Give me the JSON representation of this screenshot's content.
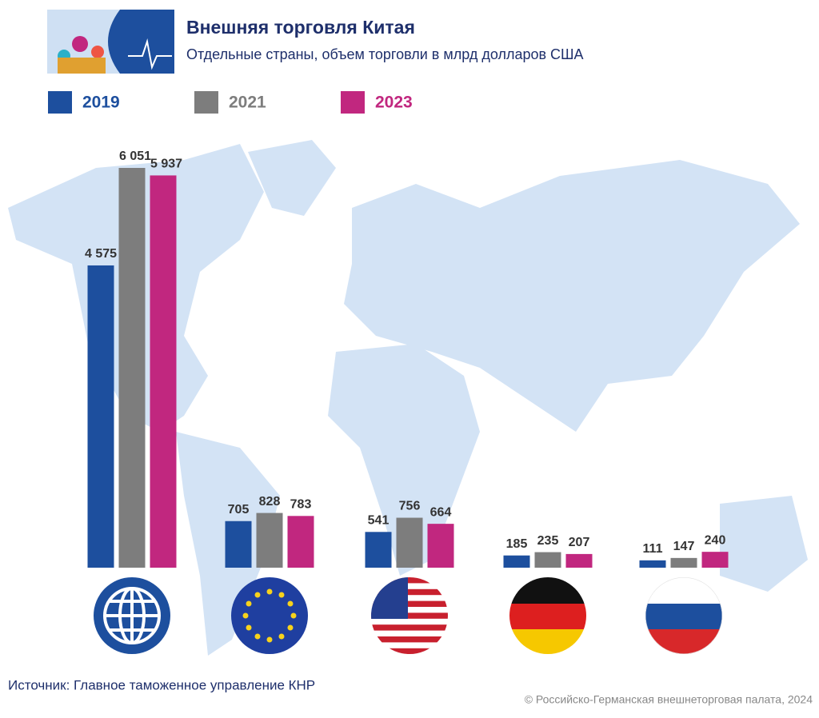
{
  "chart_data": {
    "type": "bar",
    "title": "Внешняя торговля Китая",
    "subtitle": "Отдельные страны, объем торговли в млрд долларов США",
    "categories": [
      null,
      null,
      null,
      null,
      null
    ],
    "series": [
      {
        "name": "2019",
        "color": "#1d4f9e",
        "values": [
          4575,
          705,
          541,
          185,
          111
        ],
        "value_labels": [
          "4 575",
          "705",
          "541",
          "185",
          "111"
        ]
      },
      {
        "name": "2021",
        "color": "#7d7d7d",
        "values": [
          6051,
          828,
          756,
          235,
          147
        ],
        "value_labels": [
          "6 051",
          "828",
          "756",
          "235",
          "147"
        ]
      },
      {
        "name": "2023",
        "color": "#c1277f",
        "values": [
          5937,
          783,
          664,
          207,
          240
        ],
        "value_labels": [
          "5 937",
          "783",
          "664",
          "207",
          "240"
        ]
      }
    ],
    "source": "Источник: Главное таможенное управление КНР",
    "copyright": "© Российско-Германская внешнеторговая палата, 2024"
  }
}
